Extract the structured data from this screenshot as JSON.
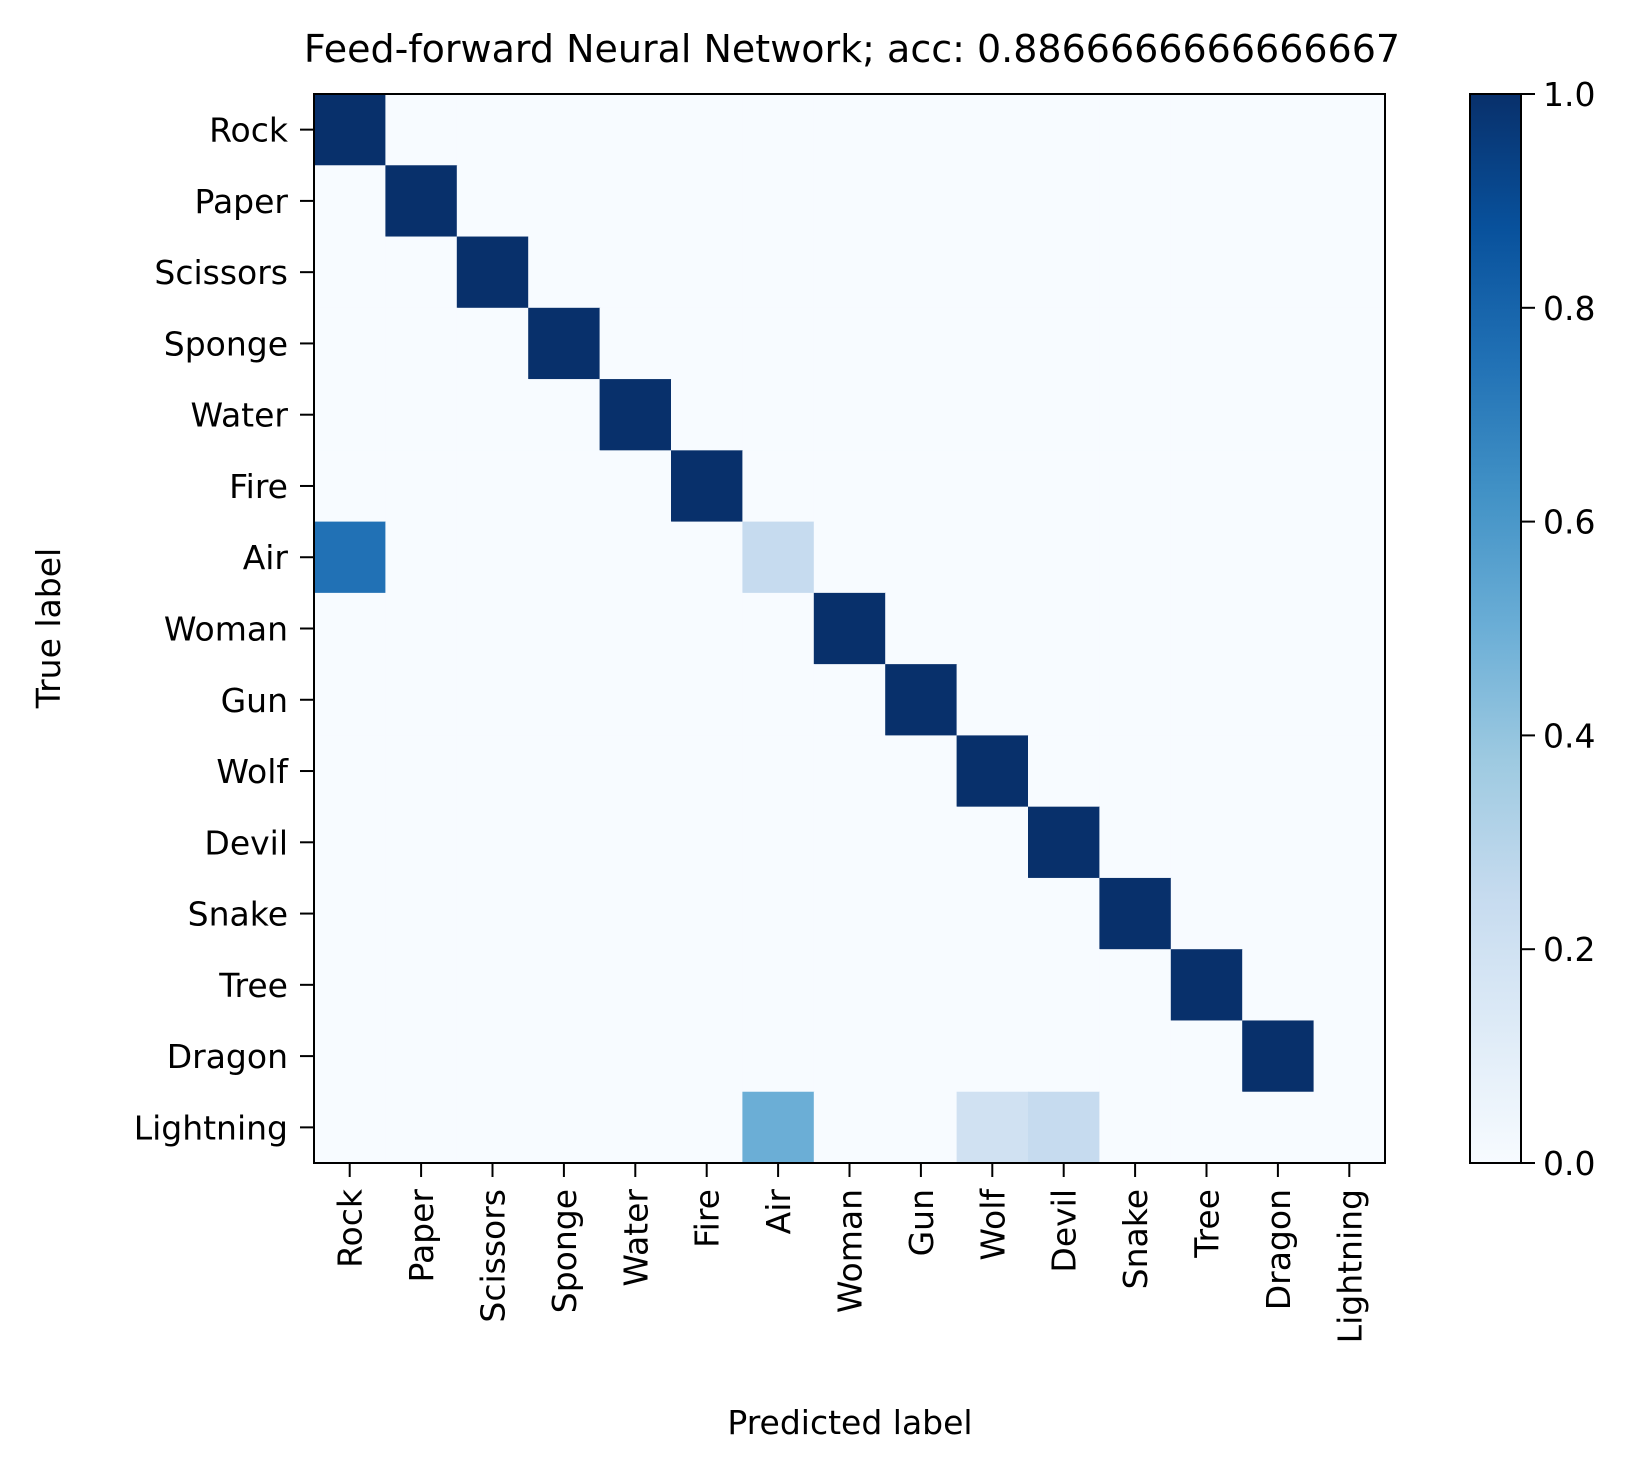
{
  "chart_data": {
    "type": "heatmap",
    "title": "Feed-forward Neural Network; acc: 0.8866666666666667",
    "xlabel": "Predicted label",
    "ylabel": "True label",
    "x_categories": [
      "Rock",
      "Paper",
      "Scissors",
      "Sponge",
      "Water",
      "Fire",
      "Air",
      "Woman",
      "Gun",
      "Wolf",
      "Devil",
      "Snake",
      "Tree",
      "Dragon",
      "Lightning"
    ],
    "y_categories": [
      "Rock",
      "Paper",
      "Scissors",
      "Sponge",
      "Water",
      "Fire",
      "Air",
      "Woman",
      "Gun",
      "Wolf",
      "Devil",
      "Snake",
      "Tree",
      "Dragon",
      "Lightning"
    ],
    "values": [
      [
        1,
        0,
        0,
        0,
        0,
        0,
        0,
        0,
        0,
        0,
        0,
        0,
        0,
        0,
        0
      ],
      [
        0,
        1,
        0,
        0,
        0,
        0,
        0,
        0,
        0,
        0,
        0,
        0,
        0,
        0,
        0
      ],
      [
        0,
        0,
        1,
        0,
        0,
        0,
        0,
        0,
        0,
        0,
        0,
        0,
        0,
        0,
        0
      ],
      [
        0,
        0,
        0,
        1,
        0,
        0,
        0,
        0,
        0,
        0,
        0,
        0,
        0,
        0,
        0
      ],
      [
        0,
        0,
        0,
        0,
        1,
        0,
        0,
        0,
        0,
        0,
        0,
        0,
        0,
        0,
        0
      ],
      [
        0,
        0,
        0,
        0,
        0,
        1,
        0,
        0,
        0,
        0,
        0,
        0,
        0,
        0,
        0
      ],
      [
        0.75,
        0,
        0,
        0,
        0,
        0,
        0.25,
        0,
        0,
        0,
        0,
        0,
        0,
        0,
        0
      ],
      [
        0,
        0,
        0,
        0,
        0,
        0,
        0,
        1,
        0,
        0,
        0,
        0,
        0,
        0,
        0
      ],
      [
        0,
        0,
        0,
        0,
        0,
        0,
        0,
        0,
        1,
        0,
        0,
        0,
        0,
        0,
        0
      ],
      [
        0,
        0,
        0,
        0,
        0,
        0,
        0,
        0,
        0,
        1,
        0,
        0,
        0,
        0,
        0
      ],
      [
        0,
        0,
        0,
        0,
        0,
        0,
        0,
        0,
        0,
        0,
        1,
        0,
        0,
        0,
        0
      ],
      [
        0,
        0,
        0,
        0,
        0,
        0,
        0,
        0,
        0,
        0,
        0,
        1,
        0,
        0,
        0
      ],
      [
        0,
        0,
        0,
        0,
        0,
        0,
        0,
        0,
        0,
        0,
        0,
        0,
        1,
        0,
        0
      ],
      [
        0,
        0,
        0,
        0,
        0,
        0,
        0,
        0,
        0,
        0,
        0,
        0,
        0,
        1,
        0
      ],
      [
        0,
        0,
        0,
        0,
        0,
        0,
        0.5,
        0,
        0,
        0.2,
        0.25,
        0,
        0,
        0,
        0
      ]
    ],
    "colormap": "Blues",
    "colorbar": {
      "range": [
        0,
        1
      ],
      "ticks": [
        "0.0",
        "0.2",
        "0.4",
        "0.6",
        "0.8",
        "1.0"
      ],
      "tick_values": [
        0,
        0.2,
        0.4,
        0.6,
        0.8,
        1.0
      ]
    },
    "grid": false
  }
}
